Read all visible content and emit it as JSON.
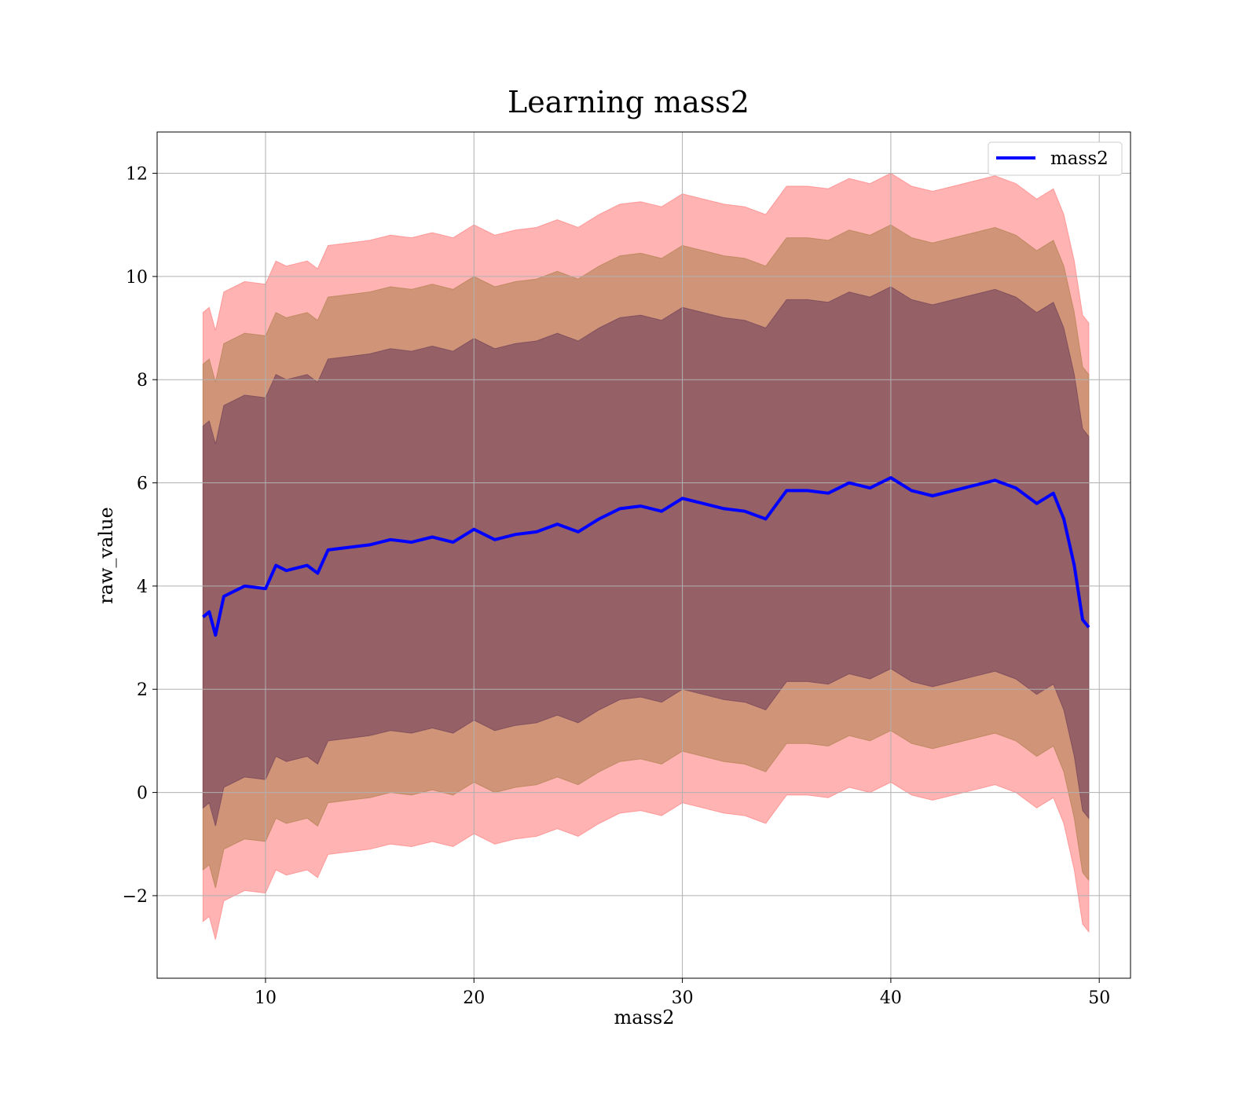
{
  "chart_data": {
    "type": "area",
    "title": "Learning mass2",
    "xlabel": "mass2",
    "ylabel": "raw_value",
    "xlim": [
      4.8,
      51.5
    ],
    "ylim": [
      -3.6,
      12.8
    ],
    "xticks": [
      10,
      20,
      30,
      40,
      50
    ],
    "yticks": [
      -2,
      0,
      2,
      4,
      6,
      8,
      10,
      12
    ],
    "ytick_labels": [
      "−2",
      "0",
      "2",
      "4",
      "6",
      "8",
      "10",
      "12"
    ],
    "grid": true,
    "legend": {
      "position": "top-right",
      "entries": [
        "mass2"
      ]
    },
    "series": [
      {
        "name": "mass2",
        "x": [
          7,
          7.3,
          7.6,
          8,
          9,
          10,
          10.5,
          11,
          12,
          12.5,
          13,
          14,
          15,
          16,
          17,
          18,
          19,
          20,
          21,
          22,
          23,
          24,
          25,
          26,
          27,
          28,
          29,
          30,
          31,
          32,
          33,
          34,
          35,
          36,
          37,
          38,
          39,
          40,
          41,
          42,
          43,
          44,
          45,
          46,
          47,
          47.8,
          48.3,
          48.8,
          49.2,
          49.5
        ],
        "y": [
          3.4,
          3.5,
          3.05,
          3.8,
          4.0,
          3.95,
          4.4,
          4.3,
          4.4,
          4.25,
          4.7,
          4.75,
          4.8,
          4.9,
          4.85,
          4.95,
          4.85,
          5.1,
          4.9,
          5.0,
          5.05,
          5.2,
          5.05,
          5.3,
          5.5,
          5.55,
          5.45,
          5.7,
          5.6,
          5.5,
          5.45,
          5.3,
          5.85,
          5.85,
          5.8,
          6.0,
          5.9,
          6.1,
          5.85,
          5.75,
          5.85,
          5.95,
          6.05,
          5.9,
          5.6,
          5.8,
          5.3,
          4.4,
          3.35,
          3.2
        ]
      }
    ],
    "bands": [
      {
        "color": "#ff8080",
        "delta": 5.9
      },
      {
        "color": "#b08050",
        "delta": 4.9
      },
      {
        "color": "#70405a",
        "delta": 3.7
      }
    ],
    "colors": {
      "line": "#0000ff",
      "band_outer": "#ffb0b2",
      "band_middle": "#c7957b",
      "band_inner": "#a07078"
    }
  }
}
